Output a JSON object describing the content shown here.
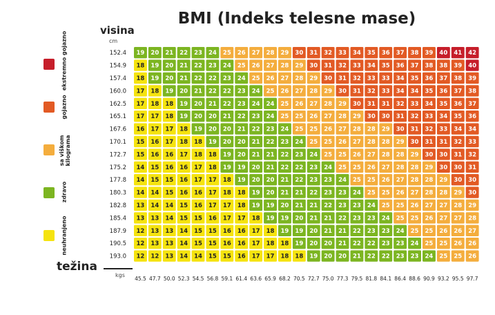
{
  "colors": {
    "neuhranjeno": "#f5e30f",
    "zdravo": "#7cb521",
    "sa_viskom": "#f4ad3d",
    "gojazno": "#e25a24",
    "ekstremno": "#c61e2a"
  },
  "legend": [
    {
      "label": "ekstremno gojazno",
      "color": "#c61e2a"
    },
    {
      "label": "gojazno",
      "color": "#e25a24"
    },
    {
      "label": "sa viškom\nkilograma",
      "color": "#f4ad3d"
    },
    {
      "label": "zdravo",
      "color": "#7cb521"
    },
    {
      "label": "neuhranjeno",
      "color": "#f5e30f"
    }
  ],
  "chart_data": {
    "type": "heatmap",
    "title": "BMI (Indeks telesne mase)",
    "ylabel": "visina",
    "y_unit": "cm",
    "xlabel": "težina",
    "x_unit": "kgs",
    "rows": [
      "152.4",
      "154.9",
      "157.4",
      "160.0",
      "162.5",
      "165.1",
      "167.6",
      "170.1",
      "172.7",
      "175.2",
      "177.8",
      "180.3",
      "182.8",
      "185.4",
      "187.9",
      "190.5",
      "193.0"
    ],
    "columns": [
      "45.5",
      "47.7",
      "50.0",
      "52.3",
      "54.5",
      "56.8",
      "59.1",
      "61.4",
      "63.6",
      "65.9",
      "68.2",
      "70.5",
      "72.7",
      "75.0",
      "77.3",
      "79.5",
      "81.8",
      "84.1",
      "86.4",
      "88.6",
      "90.9",
      "93.2",
      "95.5",
      "97.7"
    ],
    "values": [
      [
        19,
        20,
        21,
        22,
        23,
        24,
        25,
        26,
        27,
        28,
        29,
        30,
        31,
        32,
        33,
        34,
        35,
        36,
        37,
        38,
        39,
        40,
        41,
        42
      ],
      [
        18,
        19,
        20,
        21,
        22,
        23,
        24,
        25,
        26,
        27,
        28,
        29,
        30,
        31,
        32,
        33,
        34,
        35,
        36,
        37,
        38,
        38,
        39,
        40
      ],
      [
        18,
        19,
        20,
        21,
        22,
        22,
        23,
        24,
        25,
        26,
        27,
        28,
        29,
        30,
        31,
        32,
        33,
        33,
        34,
        35,
        36,
        37,
        38,
        39
      ],
      [
        17,
        18,
        19,
        20,
        21,
        22,
        22,
        23,
        24,
        25,
        26,
        27,
        28,
        29,
        30,
        31,
        32,
        33,
        34,
        34,
        35,
        36,
        37,
        38
      ],
      [
        17,
        18,
        18,
        19,
        20,
        21,
        22,
        23,
        24,
        24,
        25,
        26,
        27,
        28,
        29,
        30,
        31,
        31,
        32,
        33,
        34,
        35,
        36,
        37
      ],
      [
        17,
        17,
        18,
        19,
        20,
        20,
        21,
        22,
        23,
        24,
        25,
        25,
        26,
        27,
        28,
        29,
        30,
        30,
        31,
        32,
        33,
        34,
        35,
        36
      ],
      [
        16,
        17,
        17,
        18,
        19,
        20,
        20,
        21,
        22,
        23,
        24,
        25,
        25,
        26,
        27,
        28,
        28,
        29,
        30,
        31,
        32,
        33,
        34,
        34
      ],
      [
        15,
        16,
        17,
        18,
        18,
        19,
        20,
        20,
        21,
        22,
        23,
        24,
        25,
        25,
        26,
        27,
        28,
        28,
        29,
        30,
        31,
        31,
        32,
        33
      ],
      [
        15,
        16,
        16,
        17,
        18,
        18,
        19,
        20,
        21,
        21,
        22,
        23,
        24,
        25,
        25,
        26,
        27,
        28,
        28,
        29,
        30,
        30,
        31,
        32
      ],
      [
        14,
        15,
        16,
        16,
        17,
        18,
        19,
        19,
        20,
        21,
        22,
        22,
        23,
        24,
        25,
        25,
        26,
        27,
        28,
        28,
        29,
        30,
        30,
        31
      ],
      [
        14,
        15,
        15,
        16,
        17,
        17,
        18,
        19,
        20,
        20,
        21,
        22,
        23,
        23,
        24,
        25,
        25,
        26,
        27,
        28,
        28,
        29,
        30,
        30
      ],
      [
        14,
        14,
        15,
        16,
        16,
        17,
        18,
        18,
        19,
        20,
        21,
        21,
        22,
        23,
        23,
        24,
        25,
        25,
        26,
        27,
        28,
        28,
        29,
        30
      ],
      [
        13,
        14,
        14,
        15,
        16,
        17,
        17,
        18,
        19,
        19,
        20,
        21,
        21,
        22,
        23,
        23,
        24,
        25,
        25,
        26,
        27,
        27,
        28,
        29
      ],
      [
        13,
        13,
        14,
        15,
        15,
        16,
        17,
        17,
        18,
        19,
        19,
        20,
        21,
        21,
        22,
        23,
        23,
        24,
        25,
        25,
        26,
        27,
        27,
        28
      ],
      [
        12,
        13,
        13,
        14,
        15,
        15,
        16,
        16,
        17,
        18,
        19,
        19,
        20,
        21,
        21,
        22,
        23,
        23,
        24,
        25,
        25,
        26,
        26,
        27
      ],
      [
        12,
        13,
        13,
        14,
        15,
        15,
        16,
        16,
        17,
        18,
        18,
        19,
        20,
        20,
        21,
        22,
        22,
        23,
        23,
        24,
        25,
        25,
        26,
        26
      ],
      [
        12,
        12,
        13,
        14,
        14,
        15,
        15,
        16,
        17,
        17,
        18,
        18,
        19,
        20,
        20,
        21,
        22,
        22,
        23,
        23,
        24,
        25,
        25,
        26
      ]
    ],
    "categories": [
      {
        "name": "neuhranjeno",
        "max": 18
      },
      {
        "name": "zdravo",
        "max": 24
      },
      {
        "name": "sa viškom kilograma",
        "max": 29
      },
      {
        "name": "gojazno",
        "max": 39
      },
      {
        "name": "ekstremno gojazno",
        "max": 99
      }
    ]
  }
}
